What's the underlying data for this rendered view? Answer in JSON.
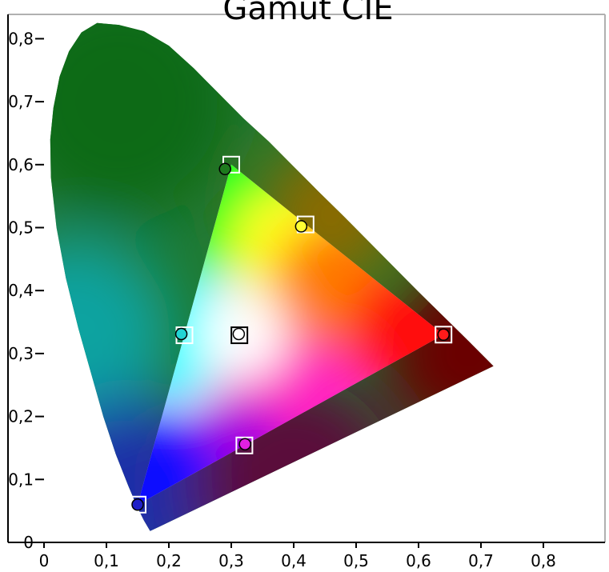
{
  "chart_data": {
    "type": "scatter",
    "title": "Gamut CIE",
    "xlabel": "",
    "ylabel": "",
    "xlim": [
      0,
      0.8
    ],
    "ylim": [
      0,
      0.8
    ],
    "x_ticks": [
      "0",
      "0,1",
      "0,2",
      "0,3",
      "0,4",
      "0,5",
      "0,6",
      "0,7",
      "0,8"
    ],
    "y_ticks": [
      "0",
      "0,1",
      "0,2",
      "0,3",
      "0,4",
      "0,5",
      "0,6",
      "0,7",
      "0,8"
    ],
    "grid": false,
    "spectral_locus": [
      [
        0.72,
        0.28
      ],
      [
        0.68,
        0.32
      ],
      [
        0.64,
        0.359
      ],
      [
        0.6,
        0.398
      ],
      [
        0.56,
        0.438
      ],
      [
        0.52,
        0.478
      ],
      [
        0.48,
        0.518
      ],
      [
        0.44,
        0.557
      ],
      [
        0.4,
        0.597
      ],
      [
        0.36,
        0.637
      ],
      [
        0.32,
        0.673
      ],
      [
        0.28,
        0.713
      ],
      [
        0.24,
        0.753
      ],
      [
        0.2,
        0.789
      ],
      [
        0.16,
        0.812
      ],
      [
        0.12,
        0.822
      ],
      [
        0.085,
        0.825
      ],
      [
        0.06,
        0.81
      ],
      [
        0.04,
        0.78
      ],
      [
        0.025,
        0.74
      ],
      [
        0.015,
        0.69
      ],
      [
        0.01,
        0.64
      ],
      [
        0.011,
        0.58
      ],
      [
        0.02,
        0.5
      ],
      [
        0.035,
        0.42
      ],
      [
        0.055,
        0.34
      ],
      [
        0.075,
        0.27
      ],
      [
        0.095,
        0.2
      ],
      [
        0.115,
        0.14
      ],
      [
        0.135,
        0.09
      ],
      [
        0.15,
        0.055
      ],
      [
        0.16,
        0.035
      ],
      [
        0.17,
        0.018
      ],
      [
        0.185,
        0.025
      ]
    ],
    "gamut_triangle": [
      [
        0.64,
        0.33
      ],
      [
        0.3,
        0.6
      ],
      [
        0.15,
        0.06
      ]
    ],
    "measured_points": [
      {
        "x": 0.64,
        "y": 0.33,
        "color": "#ff1a1a"
      },
      {
        "x": 0.29,
        "y": 0.593,
        "color": "#1e7a1e"
      },
      {
        "x": 0.15,
        "y": 0.06,
        "color": "#2020c8"
      },
      {
        "x": 0.412,
        "y": 0.502,
        "color": "#ffff33"
      },
      {
        "x": 0.22,
        "y": 0.331,
        "color": "#22d4d4"
      },
      {
        "x": 0.322,
        "y": 0.156,
        "color": "#e020e0"
      },
      {
        "x": 0.312,
        "y": 0.331,
        "color": "#ffffff"
      }
    ],
    "target_points": [
      {
        "x": 0.64,
        "y": 0.33,
        "stroke": "#ffffff"
      },
      {
        "x": 0.3,
        "y": 0.6,
        "stroke": "#ffffff"
      },
      {
        "x": 0.15,
        "y": 0.06,
        "stroke": "#ffffff"
      },
      {
        "x": 0.419,
        "y": 0.505,
        "stroke": "#ffffff"
      },
      {
        "x": 0.225,
        "y": 0.329,
        "stroke": "#ffffff"
      },
      {
        "x": 0.321,
        "y": 0.154,
        "stroke": "#ffffff"
      },
      {
        "x": 0.313,
        "y": 0.329,
        "stroke": "#000000"
      }
    ]
  }
}
